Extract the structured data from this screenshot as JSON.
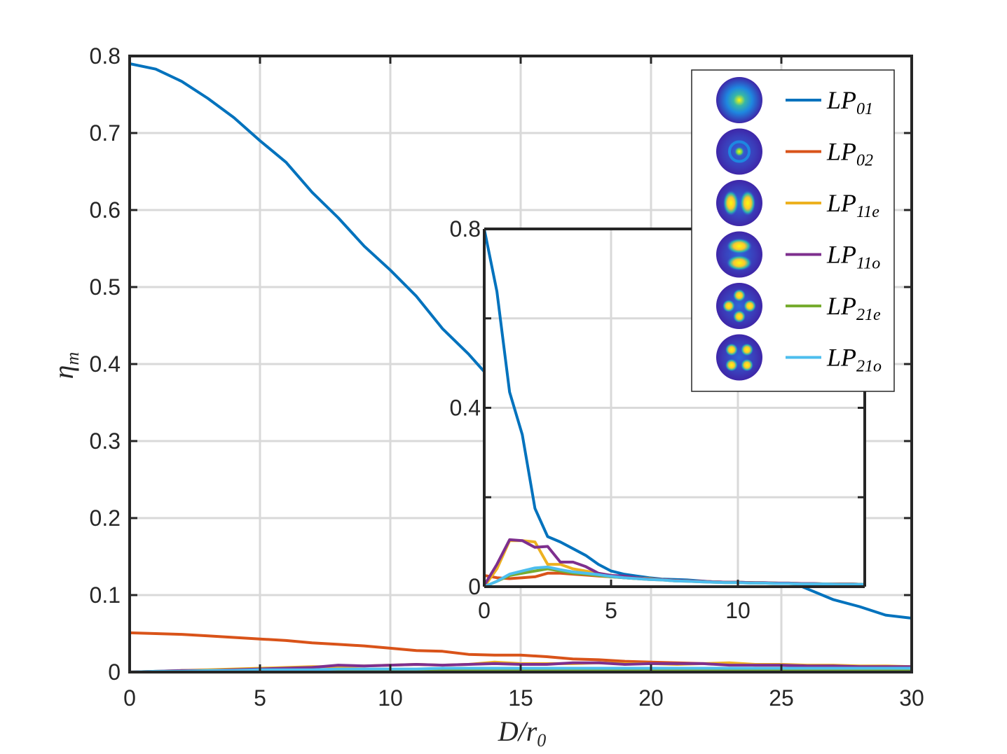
{
  "chart_data": [
    {
      "type": "line",
      "xlabel": "D/r",
      "xlabel_sub": "0",
      "ylabel": "η",
      "ylabel_sub": "m",
      "xlim": [
        0,
        30
      ],
      "ylim": [
        0,
        0.8
      ],
      "xticks": [
        0,
        5,
        10,
        15,
        20,
        25,
        30
      ],
      "yticks": [
        0,
        0.1,
        0.2,
        0.3,
        0.4,
        0.5,
        0.6,
        0.7,
        0.8
      ],
      "xtick_labels": [
        "0",
        "5",
        "10",
        "15",
        "20",
        "25",
        "30"
      ],
      "ytick_labels": [
        "0",
        "0.1",
        "0.2",
        "0.3",
        "0.4",
        "0.5",
        "0.6",
        "0.7",
        "0.8"
      ],
      "grid": true,
      "legend_position": "top-right",
      "x": [
        0,
        1,
        2,
        3,
        4,
        5,
        6,
        7,
        8,
        9,
        10,
        11,
        12,
        13,
        14,
        15,
        16,
        17,
        18,
        19,
        20,
        21,
        22,
        23,
        24,
        25,
        26,
        27,
        28,
        29,
        30
      ],
      "series": [
        {
          "name": "LP",
          "name_sub": "01",
          "color": "#0072BD",
          "icon": "lp01-mode-icon",
          "values": [
            0.79,
            0.783,
            0.767,
            0.745,
            0.72,
            0.69,
            0.662,
            0.623,
            0.59,
            0.553,
            0.522,
            0.488,
            0.446,
            0.413,
            0.375,
            0.345,
            0.315,
            0.288,
            0.262,
            0.238,
            0.214,
            0.193,
            0.172,
            0.155,
            0.138,
            0.122,
            0.108,
            0.094,
            0.085,
            0.074,
            0.07
          ]
        },
        {
          "name": "LP",
          "name_sub": "02",
          "color": "#D95319",
          "icon": "lp02-mode-icon",
          "values": [
            0.051,
            0.05,
            0.049,
            0.047,
            0.045,
            0.043,
            0.041,
            0.038,
            0.036,
            0.034,
            0.031,
            0.028,
            0.027,
            0.023,
            0.022,
            0.022,
            0.02,
            0.017,
            0.016,
            0.014,
            0.013,
            0.012,
            0.011,
            0.01,
            0.009,
            0.009,
            0.008,
            0.008,
            0.007,
            0.007,
            0.006
          ]
        },
        {
          "name": "LP",
          "name_sub": "11e",
          "color": "#EDB120",
          "icon": "lp11e-mode-icon",
          "values": [
            0.0,
            0.001,
            0.002,
            0.003,
            0.004,
            0.005,
            0.006,
            0.007,
            0.007,
            0.008,
            0.009,
            0.01,
            0.009,
            0.01,
            0.013,
            0.011,
            0.011,
            0.011,
            0.012,
            0.011,
            0.011,
            0.01,
            0.011,
            0.012,
            0.01,
            0.01,
            0.009,
            0.009,
            0.008,
            0.008,
            0.007
          ]
        },
        {
          "name": "LP",
          "name_sub": "11o",
          "color": "#7E2F8E",
          "icon": "lp11o-mode-icon",
          "values": [
            0.0,
            0.001,
            0.002,
            0.002,
            0.003,
            0.004,
            0.005,
            0.006,
            0.009,
            0.008,
            0.009,
            0.01,
            0.009,
            0.01,
            0.011,
            0.01,
            0.01,
            0.012,
            0.012,
            0.01,
            0.011,
            0.011,
            0.011,
            0.009,
            0.009,
            0.009,
            0.008,
            0.008,
            0.007,
            0.007,
            0.007
          ]
        },
        {
          "name": "LP",
          "name_sub": "21e",
          "color": "#77AC30",
          "icon": "lp21e-mode-icon",
          "values": [
            0.0,
            0.0,
            0.001,
            0.001,
            0.001,
            0.002,
            0.002,
            0.002,
            0.002,
            0.002,
            0.003,
            0.003,
            0.003,
            0.003,
            0.003,
            0.003,
            0.003,
            0.003,
            0.003,
            0.003,
            0.003,
            0.003,
            0.003,
            0.003,
            0.003,
            0.003,
            0.003,
            0.003,
            0.003,
            0.003,
            0.003
          ]
        },
        {
          "name": "LP",
          "name_sub": "21o",
          "color": "#4DBEEE",
          "icon": "lp21o-mode-icon",
          "values": [
            0.0,
            0.001,
            0.001,
            0.002,
            0.002,
            0.003,
            0.003,
            0.003,
            0.004,
            0.004,
            0.004,
            0.004,
            0.005,
            0.005,
            0.005,
            0.005,
            0.005,
            0.005,
            0.005,
            0.005,
            0.005,
            0.005,
            0.005,
            0.005,
            0.005,
            0.005,
            0.005,
            0.005,
            0.005,
            0.005,
            0.005
          ]
        }
      ]
    },
    {
      "type": "line",
      "role": "inset",
      "xlim": [
        0,
        15
      ],
      "ylim": [
        0,
        0.8
      ],
      "xticks": [
        0,
        5,
        10
      ],
      "xtick_labels": [
        "0",
        "5",
        "10"
      ],
      "yticks": [
        0,
        0.4,
        0.8
      ],
      "ytick_labels": [
        "0",
        "0.4",
        "0.8"
      ],
      "minor_yticks": [
        0.2,
        0.6
      ],
      "grid": true,
      "x": [
        0,
        0.5,
        1,
        1.5,
        2,
        2.5,
        3,
        3.5,
        4,
        4.5,
        5,
        5.5,
        6,
        6.5,
        7,
        7.5,
        8,
        8.5,
        9,
        9.5,
        10,
        10.5,
        11,
        11.5,
        12,
        12.5,
        13,
        13.5,
        14,
        14.5,
        15
      ],
      "series": [
        {
          "color": "#0072BD",
          "values": [
            0.8,
            0.66,
            0.435,
            0.34,
            0.175,
            0.112,
            0.1,
            0.085,
            0.07,
            0.05,
            0.035,
            0.028,
            0.024,
            0.02,
            0.017,
            0.016,
            0.015,
            0.013,
            0.011,
            0.01,
            0.01,
            0.009,
            0.008,
            0.008,
            0.007,
            0.007,
            0.006,
            0.006,
            0.006,
            0.006,
            0.005
          ]
        },
        {
          "color": "#D95319",
          "values": [
            0.025,
            0.02,
            0.018,
            0.02,
            0.022,
            0.03,
            0.03,
            0.028,
            0.026,
            0.024,
            0.022,
            0.02,
            0.018,
            0.017,
            0.016,
            0.014,
            0.013,
            0.012,
            0.011,
            0.01,
            0.009,
            0.009,
            0.008,
            0.008,
            0.007,
            0.007,
            0.006,
            0.006,
            0.006,
            0.006,
            0.005
          ]
        },
        {
          "color": "#EDB120",
          "values": [
            0.0,
            0.04,
            0.103,
            0.103,
            0.1,
            0.05,
            0.05,
            0.04,
            0.035,
            0.03,
            0.025,
            0.022,
            0.02,
            0.018,
            0.016,
            0.014,
            0.013,
            0.012,
            0.011,
            0.01,
            0.01,
            0.009,
            0.009,
            0.008,
            0.008,
            0.007,
            0.007,
            0.006,
            0.006,
            0.006,
            0.005
          ]
        },
        {
          "color": "#7E2F8E",
          "values": [
            0.003,
            0.05,
            0.105,
            0.103,
            0.088,
            0.09,
            0.055,
            0.055,
            0.045,
            0.03,
            0.025,
            0.024,
            0.02,
            0.017,
            0.016,
            0.014,
            0.013,
            0.012,
            0.011,
            0.01,
            0.01,
            0.009,
            0.009,
            0.008,
            0.008,
            0.007,
            0.007,
            0.006,
            0.006,
            0.006,
            0.005
          ]
        },
        {
          "color": "#77AC30",
          "values": [
            0.0,
            0.012,
            0.025,
            0.03,
            0.035,
            0.04,
            0.035,
            0.03,
            0.028,
            0.025,
            0.022,
            0.02,
            0.018,
            0.016,
            0.015,
            0.013,
            0.012,
            0.011,
            0.01,
            0.009,
            0.009,
            0.008,
            0.008,
            0.007,
            0.007,
            0.006,
            0.006,
            0.006,
            0.005,
            0.005,
            0.005
          ]
        },
        {
          "color": "#4DBEEE",
          "values": [
            0.0,
            0.012,
            0.028,
            0.035,
            0.042,
            0.044,
            0.038,
            0.033,
            0.03,
            0.027,
            0.023,
            0.02,
            0.018,
            0.016,
            0.015,
            0.013,
            0.012,
            0.011,
            0.01,
            0.009,
            0.009,
            0.008,
            0.008,
            0.007,
            0.007,
            0.006,
            0.006,
            0.006,
            0.005,
            0.005,
            0.005
          ]
        }
      ]
    }
  ]
}
